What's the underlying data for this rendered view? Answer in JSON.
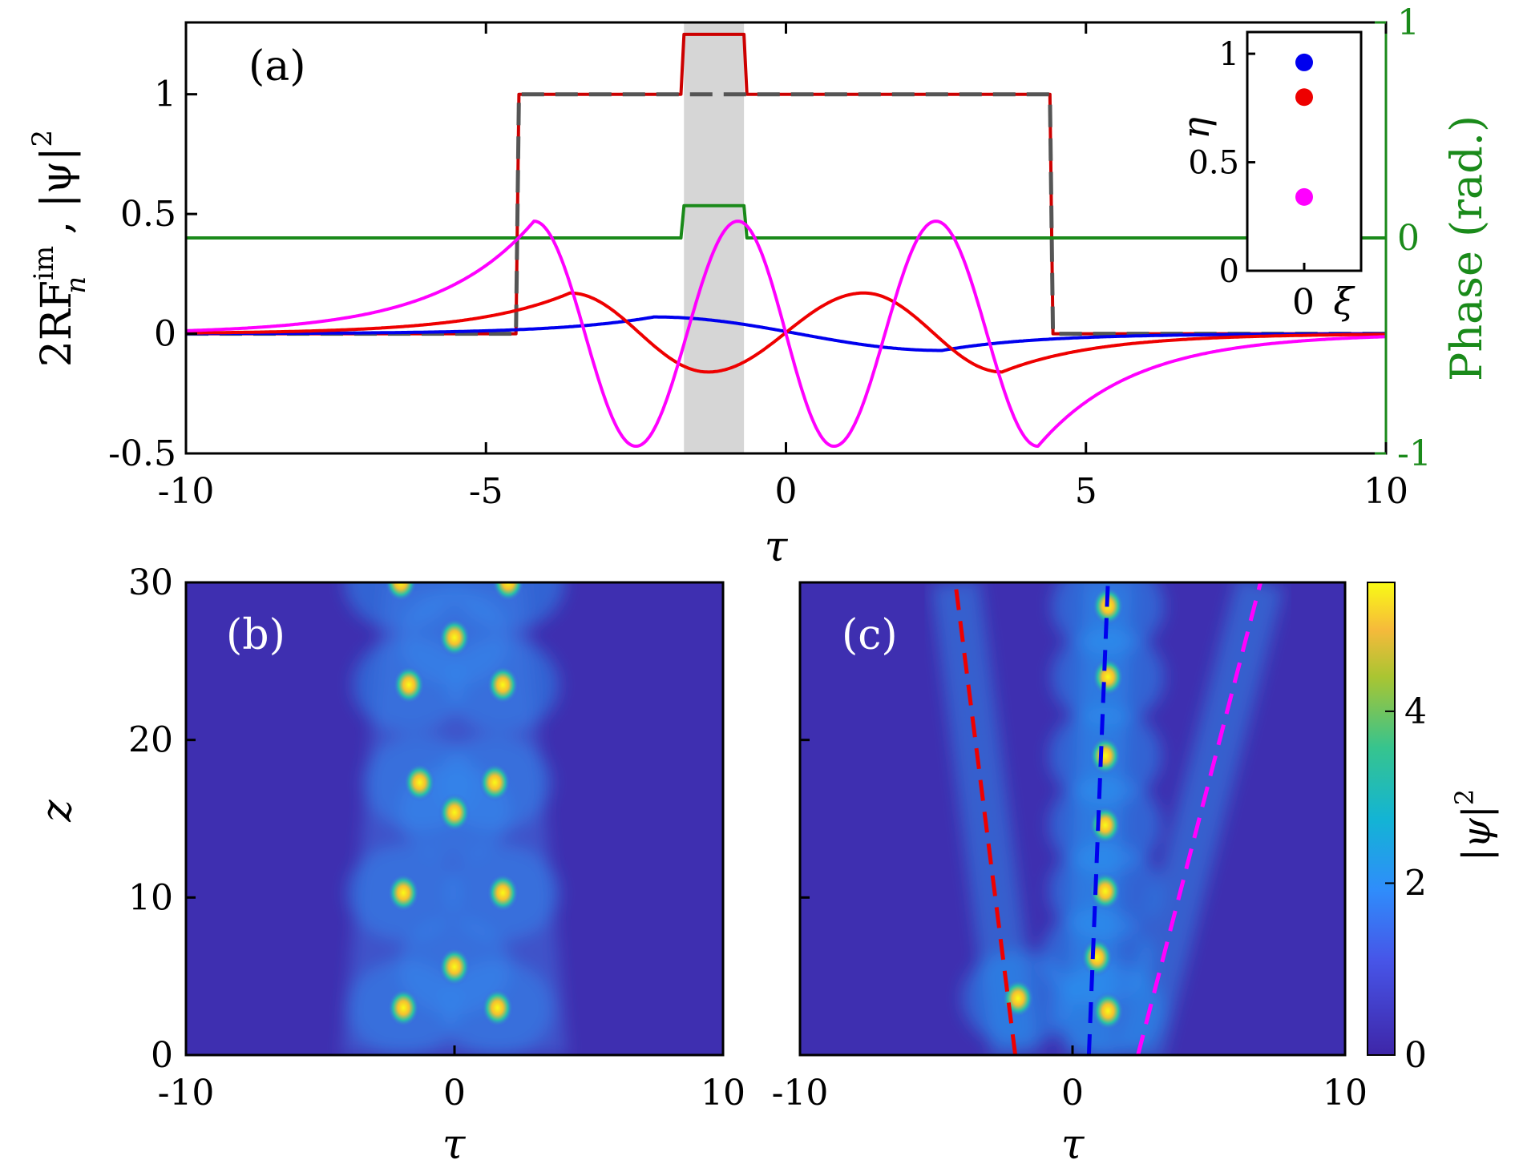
{
  "chart_data": [
    {
      "type": "line",
      "panel_label": "(a)",
      "ylabel": "2RF_n^im , |ψ|²",
      "ylabel_parts": {
        "prefix": "2RF",
        "sup": "im",
        "sub": "n",
        "mid": " ,  |ψ|",
        "pow": "2"
      },
      "y2label": "Phase (rad.)",
      "xlabel": "τ",
      "xlim": [
        -10,
        10
      ],
      "ylim": [
        -0.5,
        1.3
      ],
      "y2lim": [
        -1,
        1
      ],
      "xticks": [
        "-10",
        "-5",
        "0",
        "5",
        "10"
      ],
      "yticks": [
        "-0.5",
        "0",
        "0.5",
        "1"
      ],
      "y2ticks": [
        "-1",
        "0",
        "1"
      ],
      "shaded_region": [
        -1.7,
        -0.7
      ],
      "series": [
        {
          "name": "intensity (solid)",
          "color": "#cc0000",
          "description": "|ψ|² rectangular profile with bump",
          "x": [
            -10,
            -4.5,
            -4.45,
            -1.75,
            -1.7,
            -0.7,
            -0.65,
            4.4,
            4.45,
            10
          ],
          "y": [
            0,
            0,
            1,
            1,
            1.25,
            1.25,
            1,
            1,
            0,
            0
          ]
        },
        {
          "name": "intensity (dashed)",
          "color": "#555555",
          "x": [
            -10,
            -4.5,
            -4.45,
            4.4,
            4.45,
            10
          ],
          "y": [
            0,
            0,
            1,
            1,
            0,
            0
          ]
        },
        {
          "name": "phase",
          "color": "#1a8a1a",
          "axis": "right",
          "x": [
            -10,
            -1.75,
            -1.7,
            -0.7,
            -0.65,
            10
          ],
          "y": [
            0,
            0,
            0.15,
            0.15,
            0,
            0
          ]
        },
        {
          "name": "RF mode blue",
          "color": "#0000ee",
          "samples": "x from -10 to 10",
          "peaks": [
            {
              "x": -2.2,
              "y": 0.07
            },
            {
              "x": 2.6,
              "y": -0.07
            }
          ]
        },
        {
          "name": "RF mode red",
          "color": "#ee0000",
          "peaks": [
            {
              "x": -3.6,
              "y": 0.17
            },
            {
              "x": -1.3,
              "y": -0.16
            },
            {
              "x": 1.3,
              "y": 0.17
            },
            {
              "x": 3.6,
              "y": -0.16
            }
          ]
        },
        {
          "name": "RF mode magenta",
          "color": "#ff00ff",
          "peaks": [
            {
              "x": -4.2,
              "y": 0.47
            },
            {
              "x": -2.5,
              "y": -0.47
            },
            {
              "x": -0.8,
              "y": 0.47
            },
            {
              "x": 0.8,
              "y": -0.47
            },
            {
              "x": 2.5,
              "y": 0.47
            },
            {
              "x": 4.2,
              "y": -0.47
            }
          ]
        }
      ],
      "inset": {
        "type": "scatter",
        "xlabel": "ξ",
        "ylabel": "η",
        "xticks": [
          "0"
        ],
        "yticks": [
          "0",
          "0.5",
          "1"
        ],
        "xlim": [
          -1,
          1
        ],
        "ylim": [
          0,
          1.1
        ],
        "points": [
          {
            "x": 0,
            "y": 0.96,
            "color": "#0000ee"
          },
          {
            "x": 0,
            "y": 0.8,
            "color": "#ee0000"
          },
          {
            "x": 0,
            "y": 0.34,
            "color": "#ff00ff"
          }
        ]
      }
    },
    {
      "type": "heatmap",
      "panel_label": "(b)",
      "xlabel": "τ",
      "ylabel": "z",
      "xlim": [
        -10,
        10
      ],
      "ylim": [
        0,
        30
      ],
      "xticks": [
        "-10",
        "0",
        "10"
      ],
      "yticks": [
        "0",
        "10",
        "20",
        "30"
      ],
      "bright_spots": [
        {
          "tau": -1.9,
          "z": 3
        },
        {
          "tau": 1.6,
          "z": 3
        },
        {
          "tau": 0,
          "z": 5.6
        },
        {
          "tau": -1.9,
          "z": 10.3
        },
        {
          "tau": 1.8,
          "z": 10.3
        },
        {
          "tau": 0,
          "z": 15.4
        },
        {
          "tau": -1.3,
          "z": 17.3
        },
        {
          "tau": 1.5,
          "z": 17.3
        },
        {
          "tau": -1.7,
          "z": 23.5
        },
        {
          "tau": 1.8,
          "z": 23.5
        },
        {
          "tau": 0,
          "z": 26.5
        },
        {
          "tau": -2,
          "z": 30
        },
        {
          "tau": 2,
          "z": 30
        }
      ]
    },
    {
      "type": "heatmap",
      "panel_label": "(c)",
      "xlabel": "τ",
      "xlim": [
        -10,
        10
      ],
      "ylim": [
        0,
        30
      ],
      "xticks": [
        "-10",
        "0",
        "10"
      ],
      "trajectories": [
        {
          "color": "#ee0000",
          "tau0": -2.1,
          "tau30": -4.3
        },
        {
          "color": "#0000ee",
          "tau0": 0.6,
          "tau30": 1.3
        },
        {
          "color": "#ff00ff",
          "tau0": 2.4,
          "tau30": 6.9
        }
      ],
      "bright_spots": [
        {
          "tau": -2.0,
          "z": 3.6
        },
        {
          "tau": 1.3,
          "z": 2.8
        },
        {
          "tau": 0.9,
          "z": 6.2
        },
        {
          "tau": 1.2,
          "z": 10.4
        },
        {
          "tau": 1.2,
          "z": 14.6
        },
        {
          "tau": 1.2,
          "z": 19
        },
        {
          "tau": 1.3,
          "z": 24
        },
        {
          "tau": 1.3,
          "z": 28.5
        }
      ],
      "colorbar": {
        "label": "|ψ|²",
        "label_parts": {
          "base": "|ψ|",
          "pow": "2"
        },
        "ticks": [
          "0",
          "2",
          "4"
        ],
        "lim": [
          0,
          5.5
        ]
      }
    }
  ]
}
